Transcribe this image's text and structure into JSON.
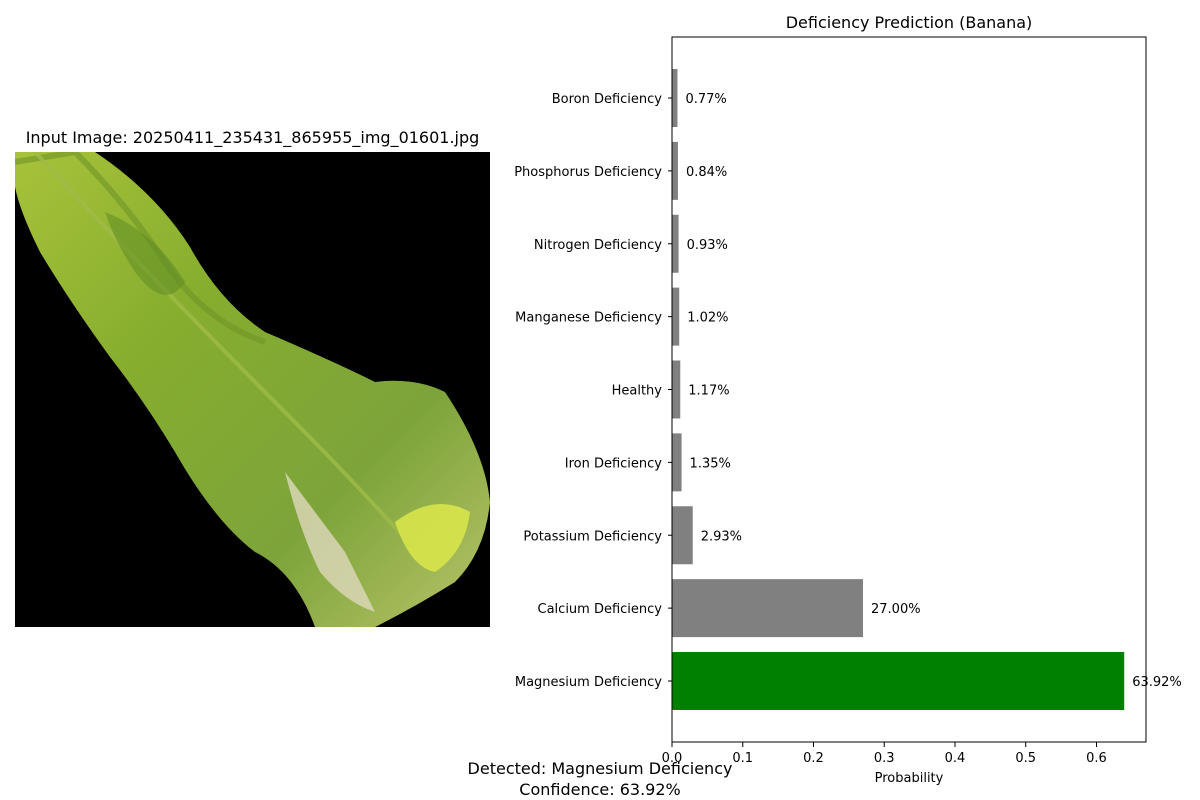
{
  "image_panel": {
    "title": "Input Image: 20250411_235431_865955_img_01601.jpg"
  },
  "chart_data": {
    "type": "bar",
    "orientation": "horizontal",
    "title": "Deficiency Prediction (Banana)",
    "xlabel": "Probability",
    "ylabel": "",
    "xlim": [
      0,
      0.67
    ],
    "xticks": [
      0.0,
      0.1,
      0.2,
      0.3,
      0.4,
      0.5,
      0.6
    ],
    "grid": false,
    "categories": [
      "Boron Deficiency",
      "Phosphorus Deficiency",
      "Nitrogen Deficiency",
      "Manganese Deficiency",
      "Healthy",
      "Iron Deficiency",
      "Potassium Deficiency",
      "Calcium Deficiency",
      "Magnesium Deficiency"
    ],
    "values": [
      0.0077,
      0.0084,
      0.0093,
      0.0102,
      0.0117,
      0.0135,
      0.0293,
      0.27,
      0.6392
    ],
    "data_labels": [
      "0.77%",
      "0.84%",
      "0.93%",
      "1.02%",
      "1.17%",
      "1.35%",
      "2.93%",
      "27.00%",
      "63.92%"
    ],
    "bar_colors": [
      "#808080",
      "#808080",
      "#808080",
      "#808080",
      "#808080",
      "#808080",
      "#808080",
      "#808080",
      "#008000"
    ]
  },
  "summary": {
    "detected": "Detected: Magnesium Deficiency",
    "confidence": "Confidence: 63.92%"
  }
}
